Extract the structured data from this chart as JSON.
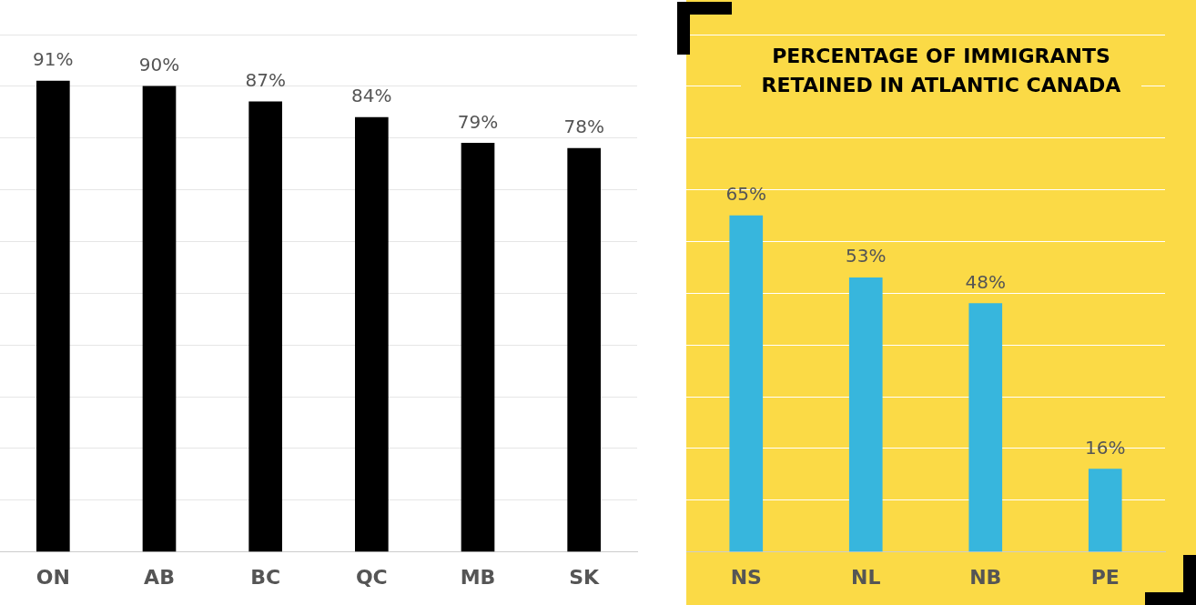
{
  "chart_data": [
    {
      "type": "bar",
      "categories": [
        "ON",
        "AB",
        "BC",
        "QC",
        "MB",
        "SK"
      ],
      "values": [
        91,
        90,
        87,
        84,
        79,
        78
      ],
      "value_labels": [
        "91%",
        "90%",
        "87%",
        "84%",
        "79%",
        "78%"
      ],
      "color": "#000000",
      "ylim": [
        0,
        100
      ],
      "yticks": [
        {
          "value": 0,
          "label": null
        },
        {
          "value": 10,
          "label": null
        },
        {
          "value": 20,
          "label": null
        },
        {
          "value": 30,
          "label": null
        },
        {
          "value": 40,
          "label": null
        },
        {
          "value": 50,
          "label": null
        },
        {
          "value": 60,
          "label": null
        },
        {
          "value": 70,
          "label": null
        },
        {
          "value": 80,
          "label": null
        },
        {
          "value": 90,
          "label": null
        },
        {
          "value": 100,
          "label": null
        }
      ],
      "grid": "y",
      "tick_labels": "x",
      "legend": false
    },
    {
      "type": "bar",
      "title": "PERCENTAGE OF IMMIGRANTS RETAINED IN ATLANTIC CANADA",
      "categories": [
        "NS",
        "NL",
        "NB",
        "PE"
      ],
      "values": [
        65,
        53,
        48,
        16
      ],
      "value_labels": [
        "65%",
        "53%",
        "48%",
        "16%"
      ],
      "color": "#37b6dd",
      "ylim": [
        0,
        100
      ],
      "yticks": [
        {
          "value": 0,
          "label": null
        },
        {
          "value": 10,
          "label": null
        },
        {
          "value": 20,
          "label": null
        },
        {
          "value": 30,
          "label": null
        },
        {
          "value": 40,
          "label": null
        },
        {
          "value": 50,
          "label": null
        },
        {
          "value": 60,
          "label": null
        },
        {
          "value": 70,
          "label": null
        },
        {
          "value": 80,
          "label": null
        },
        {
          "value": 90,
          "label": null
        },
        {
          "value": 100,
          "label": null
        }
      ],
      "grid": "y",
      "tick_labels": "x",
      "legend": false
    }
  ]
}
